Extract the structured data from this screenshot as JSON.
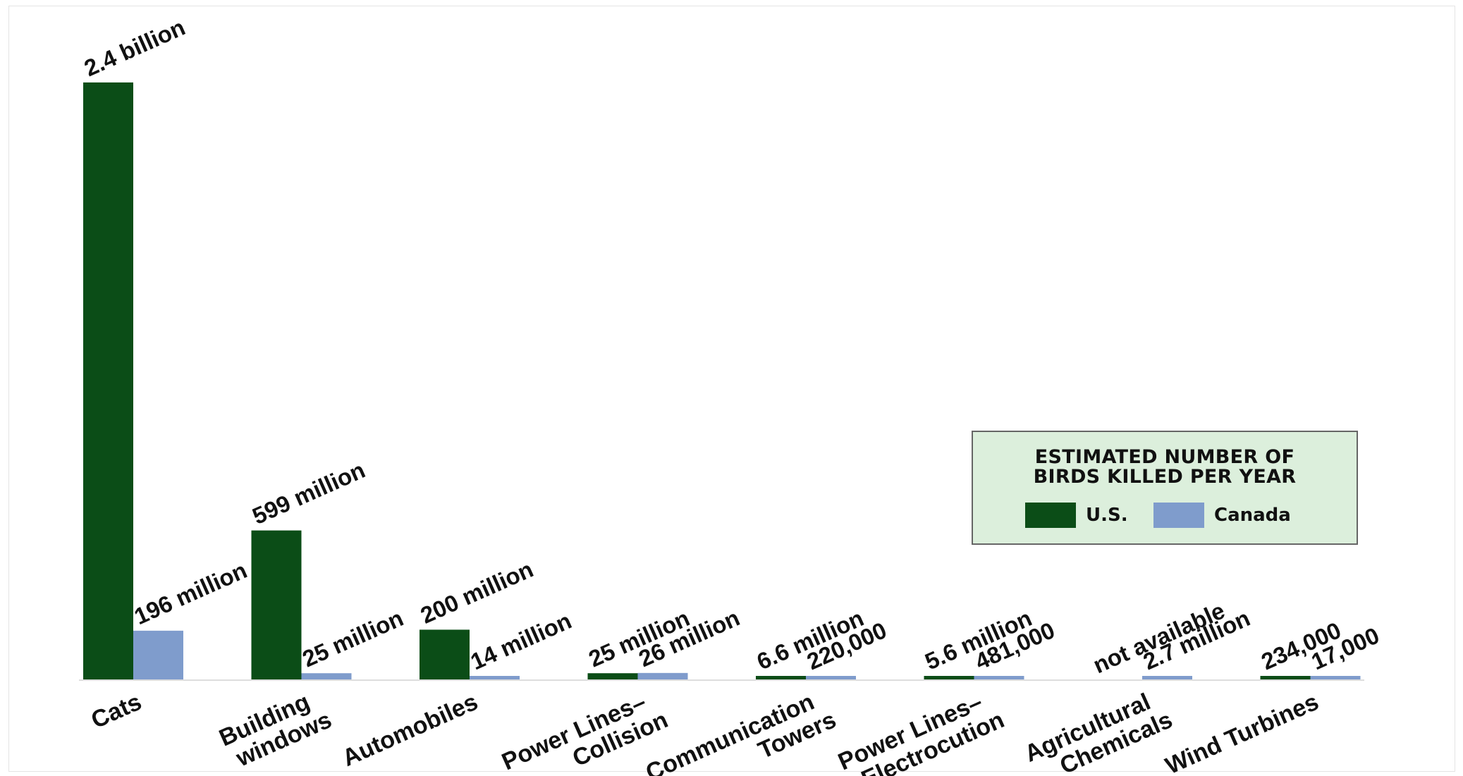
{
  "chart_data": {
    "type": "bar",
    "title": "ESTIMATED NUMBER OF\nBIRDS KILLED PER YEAR",
    "categories": [
      [
        "Cats"
      ],
      [
        "Building",
        "windows"
      ],
      [
        "Automobiles"
      ],
      [
        "Power Lines–",
        "Collision"
      ],
      [
        "Communication",
        "Towers"
      ],
      [
        "Power Lines–",
        "Electrocution"
      ],
      [
        "Agricultural",
        "Chemicals"
      ],
      [
        "Wind Turbines"
      ]
    ],
    "series": [
      {
        "name": "U.S.",
        "color": "#0b4d17",
        "values": [
          2400000000,
          599000000,
          200000000,
          25000000,
          6600000,
          5600000,
          null,
          234000
        ],
        "labels": [
          "2.4 billion",
          "599 million",
          "200 million",
          "25 million",
          "6.6 million",
          "5.6 million",
          "not available",
          "234,000"
        ]
      },
      {
        "name": "Canada",
        "color": "#7f9ccc",
        "values": [
          196000000,
          25000000,
          14000000,
          26000000,
          220000,
          481000,
          2700000,
          17000
        ],
        "labels": [
          "196 million",
          "25 million",
          "14 million",
          "26 million",
          "220,000",
          "481,000",
          "2.7 million",
          "17,000"
        ]
      }
    ],
    "axis_color": "#dddddd",
    "legend_bg": "#dcefdc",
    "legend_border": "#666666",
    "legend_placement": "right"
  }
}
